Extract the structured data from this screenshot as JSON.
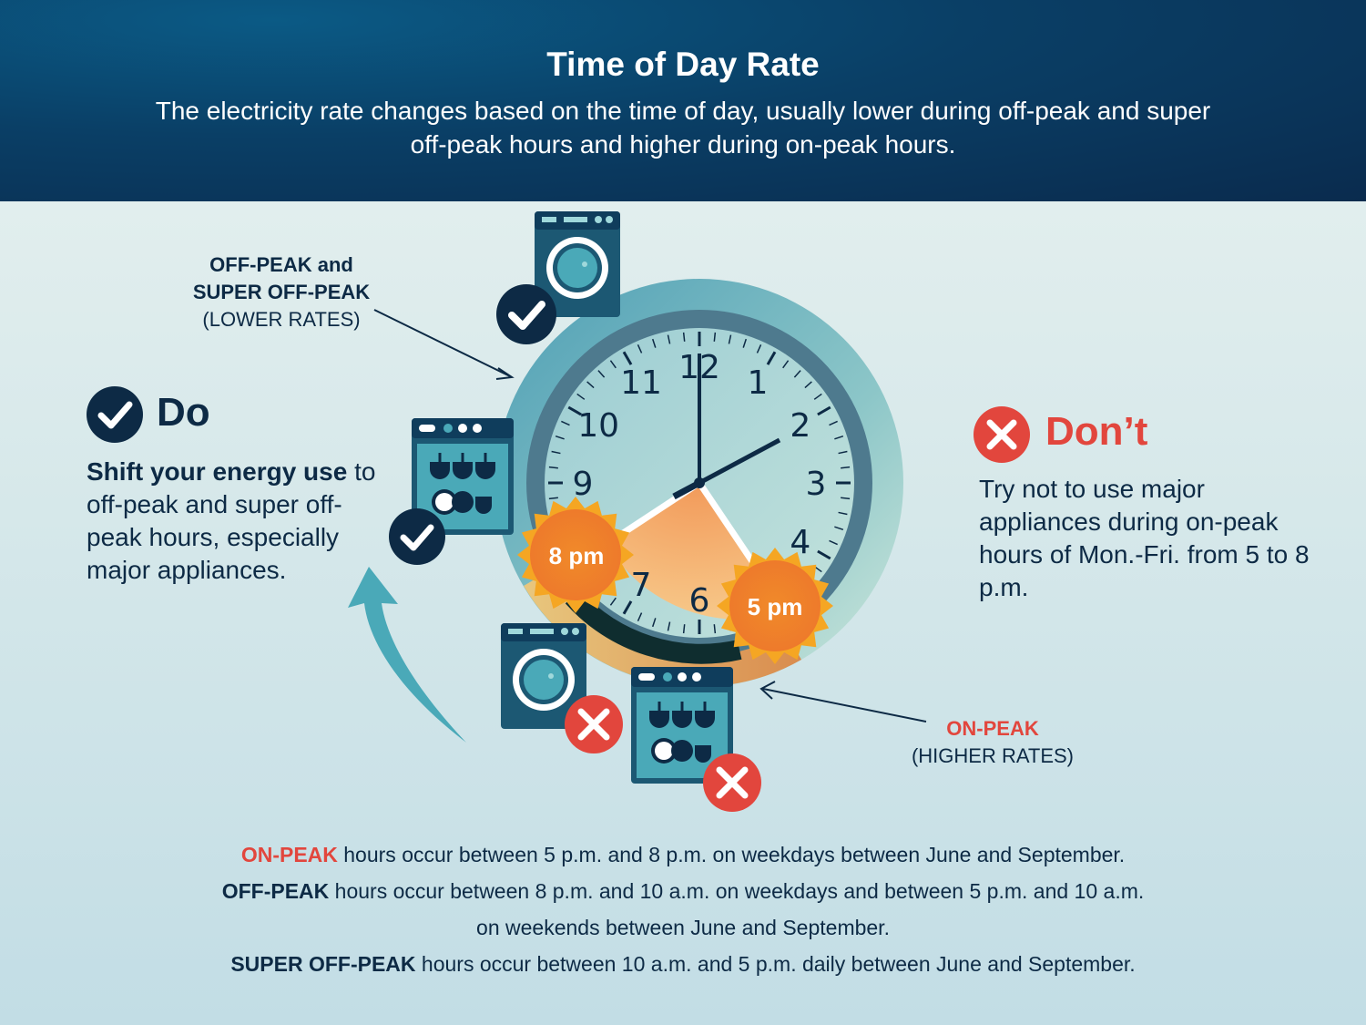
{
  "header": {
    "title": "Time of Day Rate",
    "subtitle": "The electricity rate changes based on the time of day, usually lower during off-peak and super off-peak hours and higher during on-peak hours."
  },
  "callouts": {
    "offpeak_line1": "OFF-PEAK and",
    "offpeak_line2": "SUPER OFF-PEAK",
    "offpeak_line3": "(LOWER RATES)",
    "onpeak_line1": "ON-PEAK",
    "onpeak_line2": "(HIGHER RATES)"
  },
  "do": {
    "heading": "Do",
    "text_bold": "Shift your energy use",
    "text_rest": " to off-peak and super off-peak hours, especially major appliances."
  },
  "dont": {
    "heading": "Don’t",
    "text": "Try not to use major appliances during on-peak hours of Mon.-Fri. from 5 to 8 p.m."
  },
  "clock": {
    "numbers": [
      "12",
      "1",
      "2",
      "3",
      "4",
      "5",
      "6",
      "7",
      "8",
      "9",
      "10",
      "11"
    ],
    "sun_start_label": "5 pm",
    "sun_end_label": "8 pm"
  },
  "footnotes": {
    "on_peak_term": "ON-PEAK",
    "on_peak_text": " hours occur between 5 p.m. and 8 p.m. on weekdays between June and September.",
    "off_peak_term": "OFF-PEAK",
    "off_peak_text_1": " hours occur between 8 p.m. and 10 a.m. on weekdays and between 5 p.m. and 10 a.m.",
    "off_peak_text_2": "on weekends between June and September.",
    "super_term": "SUPER OFF-PEAK",
    "super_text": " hours occur between 10 a.m. and 5 p.m. daily between June and September."
  },
  "colors": {
    "navy": "#0d2a45",
    "red": "#e2463d",
    "teal": "#4aa9b8",
    "sun": "#f08a2a"
  },
  "icons": {
    "check": "check-circle-icon",
    "cross": "x-circle-icon",
    "washer": "washing-machine-icon",
    "dishwasher": "dishwasher-icon",
    "sun": "sun-icon",
    "arrow": "curved-arrow-icon"
  }
}
